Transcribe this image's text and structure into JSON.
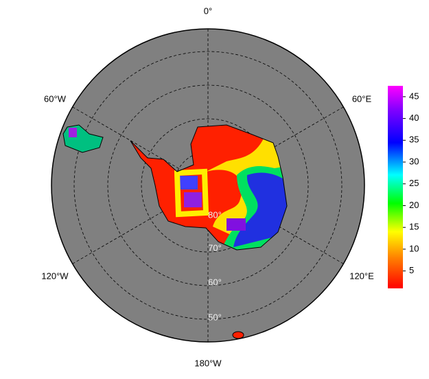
{
  "map": {
    "longitude_labels": [
      "0°",
      "60°E",
      "120°E",
      "180°W",
      "120°W",
      "60°W"
    ],
    "latitude_labels": [
      "80°",
      "70°",
      "60°",
      "50°"
    ]
  },
  "colorbar": {
    "range": [
      1,
      47.5
    ],
    "ticks": [
      5,
      10,
      15,
      20,
      25,
      30,
      35,
      40,
      45
    ]
  }
}
